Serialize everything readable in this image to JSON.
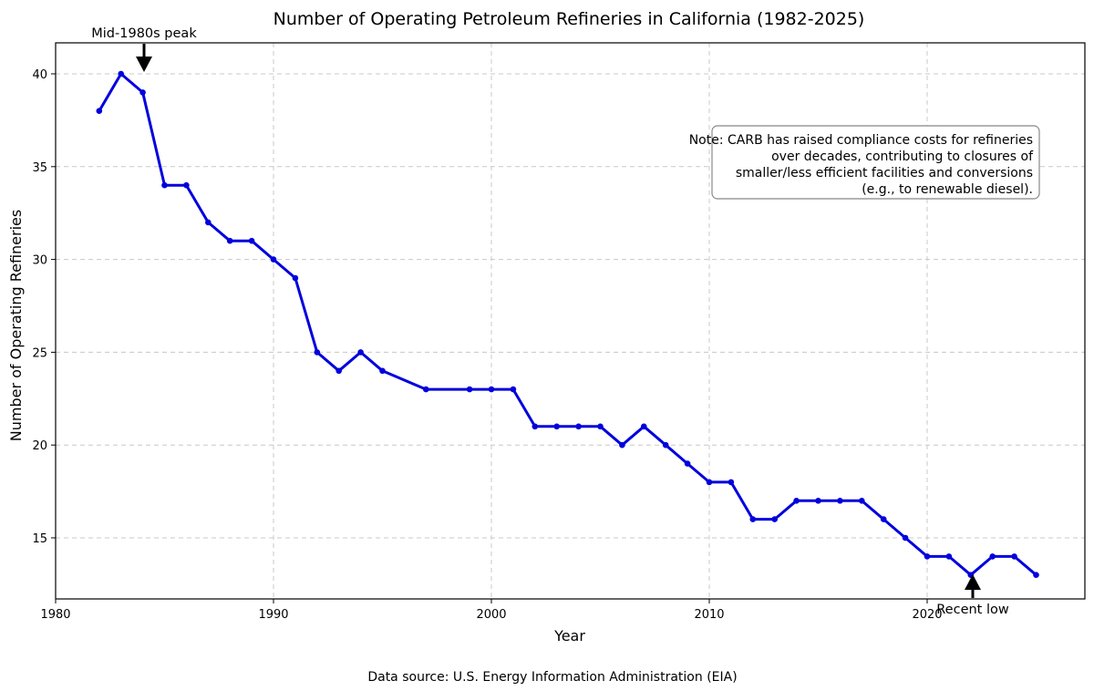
{
  "chart_data": {
    "type": "line",
    "title": "Number of Operating Petroleum Refineries in California (1982-2025)",
    "xlabel": "Year",
    "ylabel": "Number of Operating Refineries",
    "xlim": [
      1980,
      2025
    ],
    "ylim": [
      12,
      41.5
    ],
    "x_ticks": [
      1980,
      1990,
      2000,
      2010,
      2020
    ],
    "y_ticks": [
      15,
      20,
      25,
      30,
      35,
      40
    ],
    "grid": true,
    "grid_style": "dashed",
    "line_color": "#0000dd",
    "series": [
      {
        "x": [
          1982,
          1983,
          1984,
          1985,
          1986,
          1987,
          1988,
          1989,
          1990,
          1991,
          1992,
          1993,
          1994,
          1995,
          1997,
          1999,
          2000,
          2001,
          2002,
          2003,
          2004,
          2005,
          2006,
          2007,
          2008,
          2009,
          2010,
          2011,
          2012,
          2013,
          2014,
          2015,
          2016,
          2017,
          2018,
          2019,
          2020,
          2021,
          2022,
          2023,
          2024,
          2025
        ],
        "values": [
          38,
          40,
          39,
          34,
          34,
          32,
          31,
          31,
          30,
          29,
          25,
          24,
          25,
          24,
          23,
          23,
          23,
          23,
          21,
          21,
          21,
          21,
          20,
          21,
          20,
          19,
          18,
          18,
          16,
          16,
          17,
          17,
          17,
          17,
          16,
          15,
          14,
          14,
          13,
          14,
          14,
          13
        ]
      }
    ],
    "annotations": [
      {
        "text": "Mid-1980s peak",
        "x": 1984,
        "y": 39,
        "arrow": "down"
      },
      {
        "text": "Recent low",
        "x": 2022,
        "y": 13,
        "arrow": "up"
      }
    ],
    "note": {
      "lines": [
        "Note: CARB has raised compliance costs for refineries",
        "over decades, contributing to closures of",
        "smaller/less efficient facilities and conversions",
        "(e.g., to renewable diesel)."
      ]
    },
    "source": "Data source: U.S. Energy Information Administration (EIA)"
  }
}
